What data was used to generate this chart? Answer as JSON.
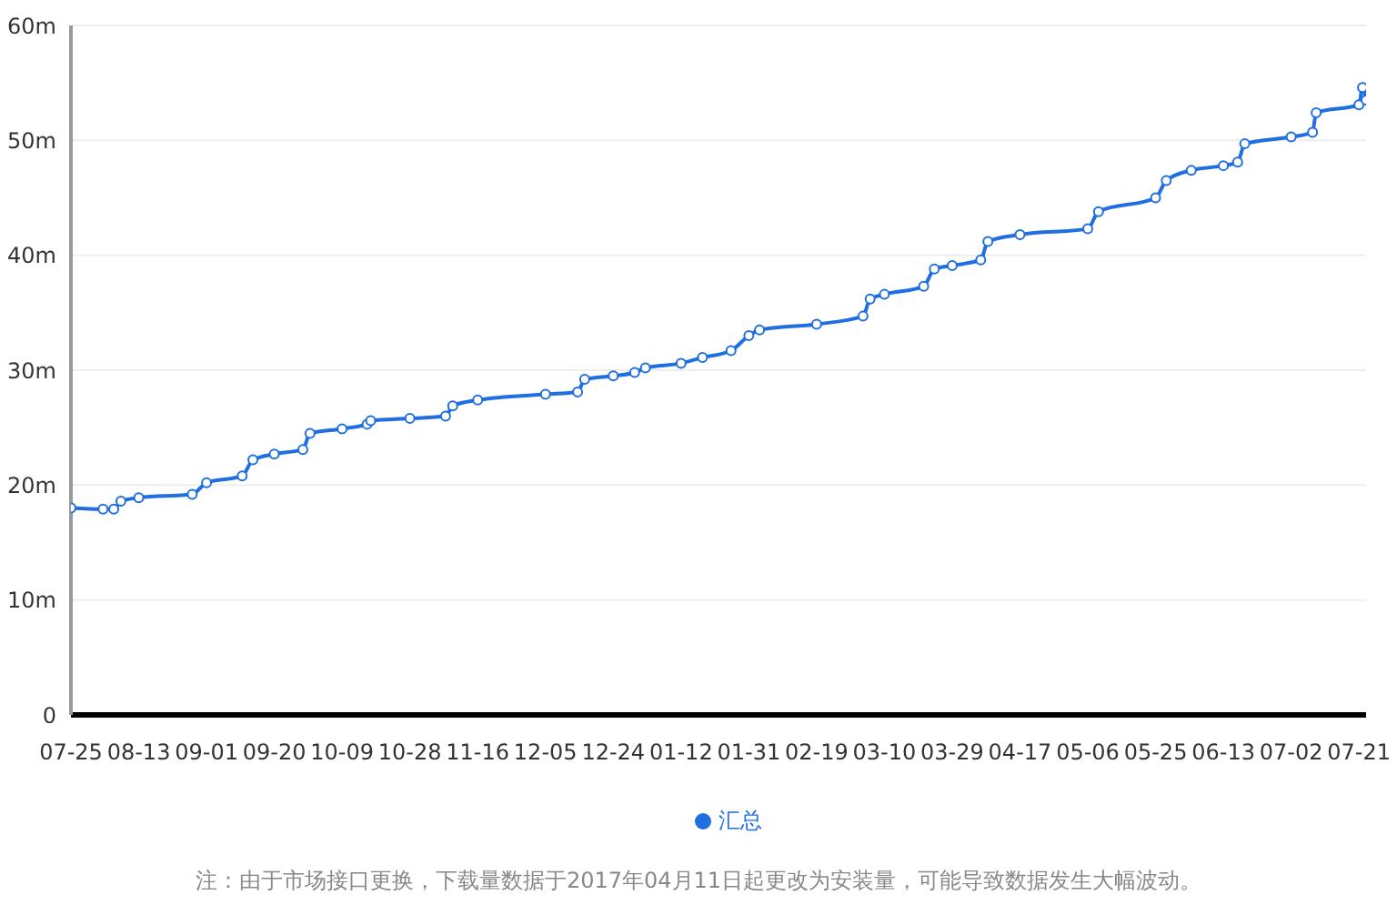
{
  "chart_data": {
    "type": "line",
    "x": [
      "2016-07-25",
      "2016-08-03",
      "2016-08-06",
      "2016-08-08",
      "2016-08-13",
      "2016-08-28",
      "2016-09-01",
      "2016-09-11",
      "2016-09-14",
      "2016-09-20",
      "2016-09-28",
      "2016-09-30",
      "2016-10-09",
      "2016-10-16",
      "2016-10-17",
      "2016-10-28",
      "2016-11-07",
      "2016-11-09",
      "2016-11-16",
      "2016-12-05",
      "2016-12-14",
      "2016-12-16",
      "2016-12-24",
      "2016-12-30",
      "2017-01-02",
      "2017-01-12",
      "2017-01-18",
      "2017-01-26",
      "2017-01-31",
      "2017-02-03",
      "2017-02-19",
      "2017-03-04",
      "2017-03-06",
      "2017-03-10",
      "2017-03-21",
      "2017-03-24",
      "2017-03-29",
      "2017-04-06",
      "2017-04-08",
      "2017-04-17",
      "2017-05-06",
      "2017-05-09",
      "2017-05-25",
      "2017-05-28",
      "2017-06-04",
      "2017-06-13",
      "2017-06-17",
      "2017-06-19",
      "2017-07-02",
      "2017-07-08",
      "2017-07-09",
      "2017-07-21",
      "2017-07-22",
      "2017-07-23"
    ],
    "series": [
      {
        "name": "汇总",
        "color": "#1f6fe0",
        "values": [
          18.0,
          17.9,
          17.9,
          18.6,
          18.9,
          19.2,
          20.2,
          20.8,
          22.2,
          22.7,
          23.1,
          24.5,
          24.9,
          25.3,
          25.6,
          25.8,
          26.0,
          26.9,
          27.4,
          27.9,
          28.1,
          29.2,
          29.5,
          29.8,
          30.2,
          30.6,
          31.1,
          31.7,
          33.0,
          33.5,
          34.0,
          34.7,
          36.2,
          36.6,
          37.3,
          38.8,
          39.1,
          39.6,
          41.2,
          41.8,
          42.3,
          43.8,
          45.0,
          46.5,
          47.4,
          47.8,
          48.1,
          49.7,
          50.3,
          50.7,
          52.4,
          53.1,
          54.6,
          53.5
        ]
      }
    ],
    "xlim": [
      "2016-07-25",
      "2017-07-23"
    ],
    "xticks": [
      {
        "value": "2016-07-25",
        "label": "07-25"
      },
      {
        "value": "2016-08-13",
        "label": "08-13"
      },
      {
        "value": "2016-09-01",
        "label": "09-01"
      },
      {
        "value": "2016-09-20",
        "label": "09-20"
      },
      {
        "value": "2016-10-09",
        "label": "10-09"
      },
      {
        "value": "2016-10-28",
        "label": "10-28"
      },
      {
        "value": "2016-11-16",
        "label": "11-16"
      },
      {
        "value": "2016-12-05",
        "label": "12-05"
      },
      {
        "value": "2016-12-24",
        "label": "12-24"
      },
      {
        "value": "2017-01-12",
        "label": "01-12"
      },
      {
        "value": "2017-01-31",
        "label": "01-31"
      },
      {
        "value": "2017-02-19",
        "label": "02-19"
      },
      {
        "value": "2017-03-10",
        "label": "03-10"
      },
      {
        "value": "2017-03-29",
        "label": "03-29"
      },
      {
        "value": "2017-04-17",
        "label": "04-17"
      },
      {
        "value": "2017-05-06",
        "label": "05-06"
      },
      {
        "value": "2017-05-25",
        "label": "05-25"
      },
      {
        "value": "2017-06-13",
        "label": "06-13"
      },
      {
        "value": "2017-07-02",
        "label": "07-02"
      },
      {
        "value": "2017-07-21",
        "label": "07-21"
      }
    ],
    "ylim": [
      0,
      60
    ],
    "yticks": [
      0,
      {
        "value": 10,
        "label": "10m"
      },
      {
        "value": 20,
        "label": "20m"
      },
      {
        "value": 30,
        "label": "30m"
      },
      {
        "value": 40,
        "label": "40m"
      },
      {
        "value": 50,
        "label": "50m"
      },
      {
        "value": 60,
        "label": "60m"
      }
    ],
    "grid": "y",
    "legend": "bottom",
    "marker": "circle",
    "line_style": "solid",
    "annotations": [
      "注：由于市场接口更换，下载量数据于2017年04月11日起更改为安装量，可能导致数据发生大幅波动。"
    ]
  }
}
